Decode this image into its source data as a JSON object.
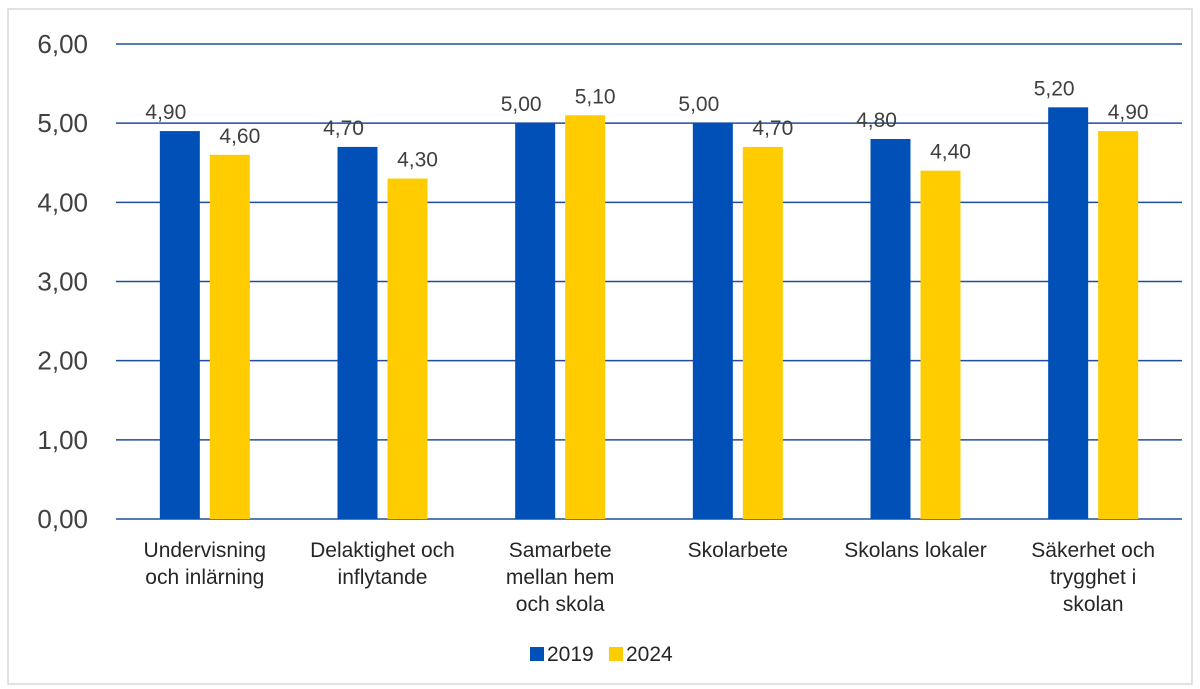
{
  "chart_data": {
    "type": "bar",
    "title": "",
    "xlabel": "",
    "ylabel": "",
    "ylim": [
      0,
      6
    ],
    "ytick_step": 1,
    "ytick_labels": [
      "0,00",
      "1,00",
      "2,00",
      "3,00",
      "4,00",
      "5,00",
      "6,00"
    ],
    "grid": true,
    "legend_position": "bottom",
    "categories": [
      [
        "Undervisning",
        "och inlärning"
      ],
      [
        "Delaktighet och",
        "inflytande"
      ],
      [
        "Samarbete",
        "mellan hem",
        "och skola"
      ],
      [
        "Skolarbete"
      ],
      [
        "Skolans lokaler"
      ],
      [
        "Säkerhet och",
        "trygghet i",
        "skolan"
      ]
    ],
    "series": [
      {
        "name": "2019",
        "color": "#0050b8",
        "values": [
          4.9,
          4.7,
          5.0,
          5.0,
          4.8,
          5.2
        ],
        "labels": [
          "4,90",
          "4,70",
          "5,00",
          "5,00",
          "4,80",
          "5,20"
        ]
      },
      {
        "name": "2024",
        "color": "#ffcc00",
        "values": [
          4.6,
          4.3,
          5.1,
          4.7,
          4.4,
          4.9
        ],
        "labels": [
          "4,60",
          "4,30",
          "5,10",
          "4,70",
          "4,40",
          "4,90"
        ]
      }
    ],
    "gridline_color": "#1f4e9c",
    "frame_color": "#d9d9d9"
  }
}
